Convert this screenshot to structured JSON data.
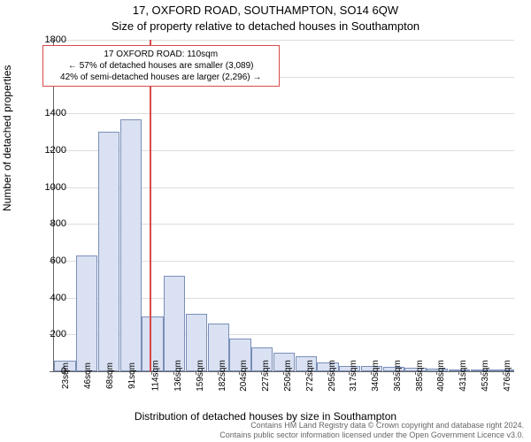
{
  "chart": {
    "type": "histogram",
    "title_main": "17, OXFORD ROAD, SOUTHAMPTON, SO14 6QW",
    "title_sub": "Size of property relative to detached houses in Southampton",
    "ylabel": "Number of detached properties",
    "xlabel": "Distribution of detached houses by size in Southampton",
    "ylim_max": 1800,
    "ytick_step": 200,
    "bar_fill": "#d9e1f2",
    "bar_border": "#7a8fb8",
    "grid_color": "#dddddd",
    "axis_color": "#666666",
    "background_color": "#ffffff",
    "yticks": [
      0,
      200,
      400,
      600,
      800,
      1000,
      1200,
      1400,
      1600,
      1800
    ],
    "xticks": [
      "23sqm",
      "46sqm",
      "68sqm",
      "91sqm",
      "114sqm",
      "136sqm",
      "159sqm",
      "182sqm",
      "204sqm",
      "227sqm",
      "250sqm",
      "272sqm",
      "295sqm",
      "317sqm",
      "340sqm",
      "363sqm",
      "385sqm",
      "408sqm",
      "431sqm",
      "453sqm",
      "476sqm"
    ],
    "bars": [
      60,
      630,
      1300,
      1370,
      300,
      520,
      310,
      260,
      180,
      130,
      100,
      80,
      50,
      30,
      30,
      25,
      20,
      15,
      10,
      8,
      5
    ],
    "marker": {
      "color": "#d84a4a",
      "position_index": 3.85,
      "annotation_lines": [
        "17 OXFORD ROAD: 110sqm",
        "← 57% of detached houses are smaller (3,089)",
        "42% of semi-detached houses are larger (2,296) →"
      ]
    }
  },
  "footer": {
    "line1": "Contains HM Land Registry data © Crown copyright and database right 2024.",
    "line2": "Contains public sector information licensed under the Open Government Licence v3.0."
  }
}
